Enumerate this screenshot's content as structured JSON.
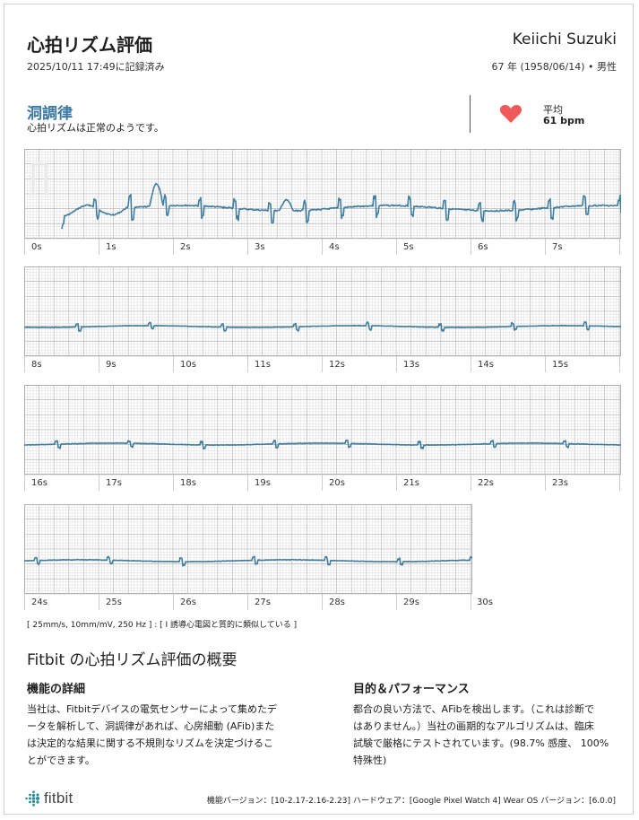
{
  "header": {
    "title": "心拍リズム評価",
    "recorded": "2025/10/11 17:49に記録済み",
    "patient_name": "Keiichi Suzuki",
    "patient_info": "67 年 (1958/06/14) • 男性"
  },
  "result": {
    "title": "洞調律",
    "description": "心拍リズムは正常のようです。",
    "avg_label": "平均",
    "avg_value": "61 bpm",
    "heart_icon": "heart-icon",
    "heart_color": "#f0595c"
  },
  "ecg": {
    "trace_color": "#3f7d9e",
    "grid_minor_color": "#d6d6d6",
    "grid_major_color": "#b5b5b5",
    "strips": [
      {
        "ticks": [
          "0s",
          "1s",
          "2s",
          "3s",
          "4s",
          "5s",
          "6s",
          "7s"
        ],
        "trailing_tick": ""
      },
      {
        "ticks": [
          "8s",
          "9s",
          "10s",
          "11s",
          "12s",
          "13s",
          "14s",
          "15s"
        ],
        "trailing_tick": ""
      },
      {
        "ticks": [
          "16s",
          "17s",
          "18s",
          "19s",
          "20s",
          "21s",
          "22s",
          "23s"
        ],
        "trailing_tick": ""
      },
      {
        "ticks": [
          "24s",
          "25s",
          "26s",
          "27s",
          "28s",
          "29s"
        ],
        "trailing_tick": "30s"
      }
    ],
    "footnote": "[ 25mm/s, 10mm/mV, 250 Hz ] : [ I 誘導心電図と質的に類似している ]"
  },
  "summary": {
    "title": "Fitbit の心拍リズム評価の概要",
    "left_heading": "機能の詳細",
    "left_lines": [
      "当社は、Fitbitデバイスの電気センサーによって集めたデ",
      "ータを解析して、洞調律があれば、心房細動 (AFib)また",
      "は決定的な結果に関する不規則なリズムを決定づけるこ",
      "とができます。"
    ],
    "right_heading": "目的＆パフォーマンス",
    "right_lines": [
      "都合の良い方法で、AFibを検出します。（これは診断で",
      "はありません。）当社の画期的なアルゴリズムは、臨床",
      "試験で厳格にテストされています。(98.7% 感度、 100%",
      "特殊性)"
    ]
  },
  "footer": {
    "logo_text": "fitbit",
    "logo_icon": "fitbit-dots-icon",
    "logo_color": "#2e8f9c",
    "version_info": "機能バージョン：[10-2.17-2.16-2.23]  ハードウェア：[Google Pixel Watch 4]  Wear OS バージョン：[6.0.0]"
  }
}
